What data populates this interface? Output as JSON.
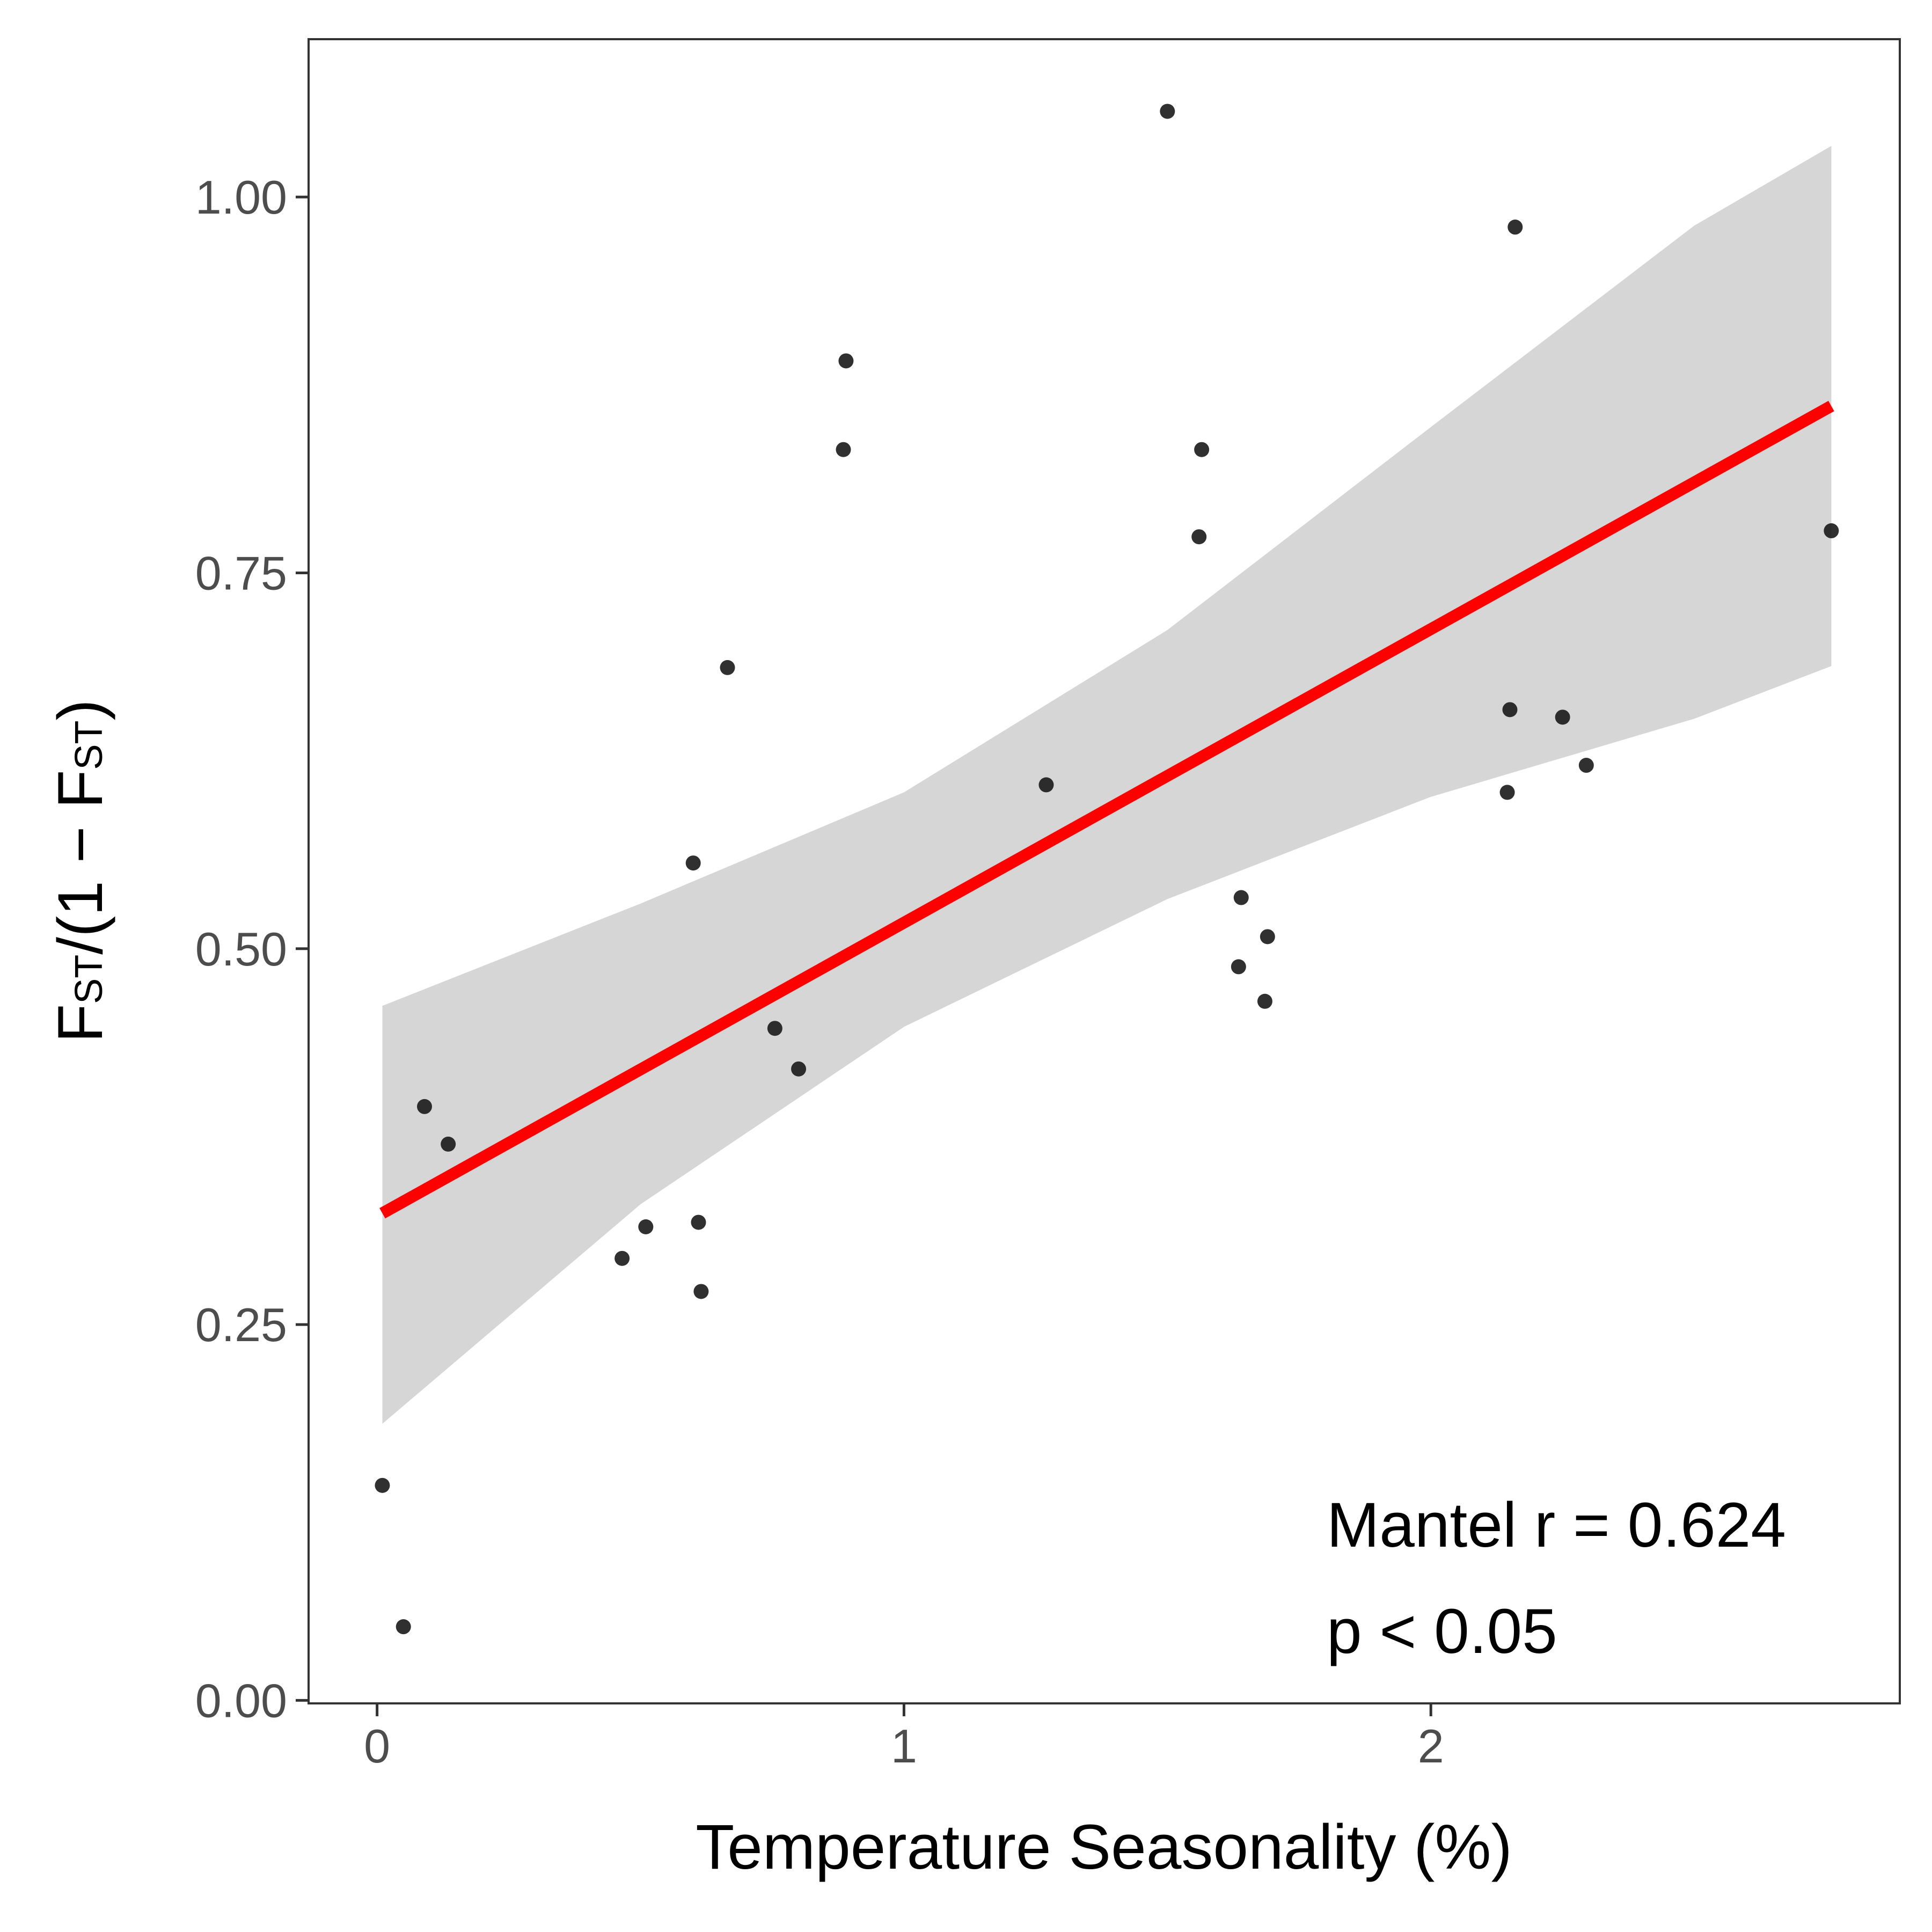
{
  "chart_data": {
    "type": "scatter",
    "xlabel": "Temperature Seasonality (%)",
    "ylabel": {
      "F1": "F",
      "sub1": "ST",
      "mid": "/(1 − ",
      "F2": "F",
      "sub2": "ST",
      "end": ")"
    },
    "xlim": [
      -0.13,
      2.89
    ],
    "ylim": [
      -0.002,
      1.105
    ],
    "x_ticks": [
      0,
      1,
      2
    ],
    "x_tick_labels": [
      "0",
      "1",
      "2"
    ],
    "y_ticks": [
      0.0,
      0.25,
      0.5,
      0.75,
      1.0
    ],
    "y_tick_labels": [
      "0.00",
      "0.25",
      "0.50",
      "0.75",
      "1.00"
    ],
    "points": [
      {
        "x": 0.01,
        "y": 0.143
      },
      {
        "x": 0.05,
        "y": 0.049
      },
      {
        "x": 0.09,
        "y": 0.395
      },
      {
        "x": 0.135,
        "y": 0.37
      },
      {
        "x": 0.465,
        "y": 0.294
      },
      {
        "x": 0.51,
        "y": 0.315
      },
      {
        "x": 0.6,
        "y": 0.557
      },
      {
        "x": 0.61,
        "y": 0.318
      },
      {
        "x": 0.615,
        "y": 0.272
      },
      {
        "x": 0.665,
        "y": 0.687
      },
      {
        "x": 0.755,
        "y": 0.447
      },
      {
        "x": 0.8,
        "y": 0.42
      },
      {
        "x": 0.885,
        "y": 0.832
      },
      {
        "x": 0.89,
        "y": 0.891
      },
      {
        "x": 1.27,
        "y": 0.609
      },
      {
        "x": 1.5,
        "y": 1.057
      },
      {
        "x": 1.56,
        "y": 0.774
      },
      {
        "x": 1.565,
        "y": 0.832
      },
      {
        "x": 1.635,
        "y": 0.488
      },
      {
        "x": 1.64,
        "y": 0.534
      },
      {
        "x": 1.685,
        "y": 0.465
      },
      {
        "x": 1.69,
        "y": 0.508
      },
      {
        "x": 2.145,
        "y": 0.604
      },
      {
        "x": 2.15,
        "y": 0.659
      },
      {
        "x": 2.16,
        "y": 0.98
      },
      {
        "x": 2.25,
        "y": 0.654
      },
      {
        "x": 2.295,
        "y": 0.622
      },
      {
        "x": 2.76,
        "y": 0.778
      }
    ],
    "fit_line": {
      "x": [
        0.01,
        2.76
      ],
      "y": [
        0.324,
        0.861
      ],
      "color": "#ff0000"
    },
    "confidence_band": {
      "color": "#d6d6d6",
      "x": [
        0.01,
        0.5,
        1.0,
        1.5,
        2.0,
        2.5,
        2.76
      ],
      "upper": [
        0.462,
        0.53,
        0.604,
        0.712,
        0.847,
        0.981,
        1.034
      ],
      "lower": [
        0.184,
        0.33,
        0.448,
        0.533,
        0.601,
        0.653,
        0.688
      ]
    },
    "point_color": "#1a1a1a",
    "grid": false,
    "annotations": [
      "Mantel r = 0.624",
      "p < 0.05"
    ]
  }
}
